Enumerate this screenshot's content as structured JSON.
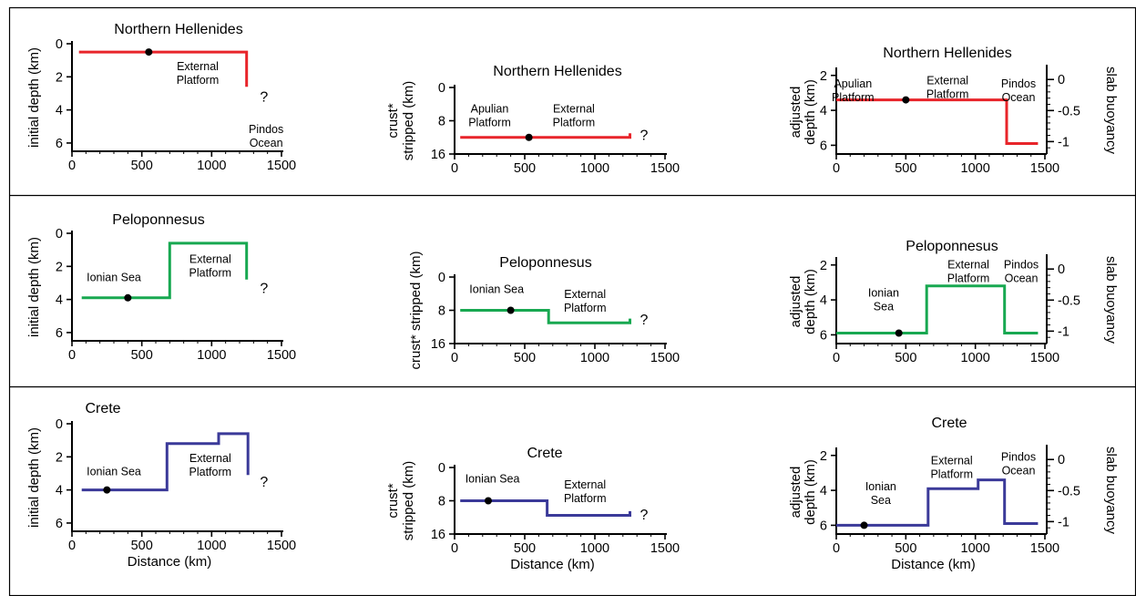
{
  "figure": {
    "colors": {
      "northern": "#e8242a",
      "peloponnesus": "#18a851",
      "crete": "#3b3a99",
      "axes": "#000000",
      "point": "#000000"
    },
    "question_mark": "?",
    "asterisk": "*"
  },
  "chart_data": [
    {
      "id": "nh-initial",
      "type": "line",
      "title": "Northern Hellenides",
      "xlabel": "",
      "ylabel": "initial depth (km)",
      "xlim": [
        0,
        1500
      ],
      "ylim": [
        0,
        6.5
      ],
      "y_inverted": true,
      "xticks": [
        "0",
        "500",
        "1000",
        "1500"
      ],
      "yticks": [
        "0",
        "2",
        "4",
        "6"
      ],
      "series": [
        {
          "values": [
            [
              50,
              0.5
            ],
            [
              1250,
              0.5
            ],
            [
              1250,
              2.6
            ]
          ]
        }
      ],
      "point": [
        550,
        0.5
      ],
      "annotations": [
        {
          "lines": [
            "External",
            "Platform"
          ],
          "x": 900,
          "y": 1.6
        },
        {
          "lines": [
            "Pindos",
            "Ocean"
          ],
          "x": 1390,
          "y": 5.4
        }
      ],
      "question_mark": {
        "x": 1375,
        "y": 3.5
      }
    },
    {
      "id": "nh-stripped",
      "type": "line",
      "title": "Northern Hellenides",
      "xlabel": "",
      "ylabel_lines": [
        "crust*",
        "stripped (km)"
      ],
      "xlim": [
        0,
        1500
      ],
      "ylim": [
        0,
        16
      ],
      "y_inverted": true,
      "xticks": [
        "0",
        "500",
        "1000",
        "1500"
      ],
      "yticks": [
        "0",
        "8",
        "16"
      ],
      "series": [
        {
          "values": [
            [
              40,
              12
            ],
            [
              1250,
              12
            ],
            [
              1250,
              11
            ]
          ]
        }
      ],
      "point": [
        530,
        12
      ],
      "annotations": [
        {
          "lines": [
            "Apulian",
            "Platform"
          ],
          "x": 250,
          "y": 6
        },
        {
          "lines": [
            "External",
            "Platform"
          ],
          "x": 850,
          "y": 6
        }
      ],
      "question_mark": {
        "x": 1350,
        "y": 12.6
      }
    },
    {
      "id": "nh-adjusted",
      "type": "line",
      "title": "Northern Hellenides",
      "xlabel": "",
      "ylabel_lines": [
        "adjusted",
        "depth (km)"
      ],
      "y2label": "slab buoyancy",
      "xlim": [
        0,
        1500
      ],
      "ylim": [
        1.7,
        6.5
      ],
      "y_inverted": true,
      "y2lim": [
        0.15,
        -1.2
      ],
      "xticks": [
        "0",
        "500",
        "1000",
        "1500"
      ],
      "yticks": [
        "2",
        "4",
        "6"
      ],
      "y2ticks": [
        "0",
        "-0.5",
        "-1"
      ],
      "series": [
        {
          "values": [
            [
              0,
              3.4
            ],
            [
              1225,
              3.4
            ],
            [
              1225,
              5.9
            ],
            [
              1450,
              5.9
            ]
          ]
        }
      ],
      "point": [
        500,
        3.4
      ],
      "annotations": [
        {
          "lines": [
            "Apulian",
            "Platform"
          ],
          "x": 120,
          "y": 2.7
        },
        {
          "lines": [
            "External",
            "Platform"
          ],
          "x": 800,
          "y": 2.5
        },
        {
          "lines": [
            "Pindos",
            "Ocean"
          ],
          "x": 1310,
          "y": 2.7
        }
      ]
    },
    {
      "id": "pe-initial",
      "type": "line",
      "title": "Peloponnesus",
      "xlabel": "",
      "ylabel": "initial depth (km)",
      "xlim": [
        0,
        1500
      ],
      "ylim": [
        0,
        6.5
      ],
      "y_inverted": true,
      "xticks": [
        "0",
        "500",
        "1000",
        "1500"
      ],
      "yticks": [
        "0",
        "2",
        "4",
        "6"
      ],
      "series": [
        {
          "values": [
            [
              70,
              3.9
            ],
            [
              700,
              3.9
            ],
            [
              700,
              0.6
            ],
            [
              1250,
              0.6
            ],
            [
              1250,
              2.8
            ]
          ]
        }
      ],
      "point": [
        400,
        3.9
      ],
      "annotations": [
        {
          "lines": [
            "Ionian Sea"
          ],
          "x": 300,
          "y": 2.9
        },
        {
          "lines": [
            "External",
            "Platform"
          ],
          "x": 990,
          "y": 1.8
        }
      ],
      "question_mark": {
        "x": 1375,
        "y": 3.6
      }
    },
    {
      "id": "pe-stripped",
      "type": "line",
      "title": "Peloponnesus",
      "xlabel": "",
      "ylabel": "crust* stripped (km)",
      "xlim": [
        0,
        1500
      ],
      "ylim": [
        0,
        16
      ],
      "y_inverted": true,
      "xticks": [
        "0",
        "500",
        "1000",
        "1500"
      ],
      "yticks": [
        "0",
        "8",
        "16"
      ],
      "series": [
        {
          "values": [
            [
              40,
              8
            ],
            [
              670,
              8
            ],
            [
              670,
              11
            ],
            [
              1250,
              11
            ],
            [
              1250,
              10
            ]
          ]
        }
      ],
      "point": [
        400,
        8
      ],
      "annotations": [
        {
          "lines": [
            "Ionian Sea"
          ],
          "x": 300,
          "y": 3.8
        },
        {
          "lines": [
            "External",
            "Platform"
          ],
          "x": 930,
          "y": 5
        }
      ],
      "question_mark": {
        "x": 1350,
        "y": 11.4
      }
    },
    {
      "id": "pe-adjusted",
      "type": "line",
      "title": "Peloponnesus",
      "xlabel": "",
      "ylabel_lines": [
        "adjusted",
        "depth (km)"
      ],
      "y2label": "slab buoyancy",
      "xlim": [
        0,
        1500
      ],
      "ylim": [
        1.7,
        6.5
      ],
      "y_inverted": true,
      "y2lim": [
        0.15,
        -1.2
      ],
      "xticks": [
        "0",
        "500",
        "1000",
        "1500"
      ],
      "yticks": [
        "2",
        "4",
        "6"
      ],
      "y2ticks": [
        "0",
        "-0.5",
        "-1"
      ],
      "series": [
        {
          "values": [
            [
              0,
              5.9
            ],
            [
              650,
              5.9
            ],
            [
              650,
              3.2
            ],
            [
              1210,
              3.2
            ],
            [
              1210,
              5.9
            ],
            [
              1450,
              5.9
            ]
          ]
        }
      ],
      "point": [
        450,
        5.9
      ],
      "annotations": [
        {
          "lines": [
            "Ionian",
            "Sea"
          ],
          "x": 340,
          "y": 3.8
        },
        {
          "lines": [
            "External",
            "Platform"
          ],
          "x": 950,
          "y": 2.2
        },
        {
          "lines": [
            "Pindos",
            "Ocean"
          ],
          "x": 1330,
          "y": 2.2
        }
      ]
    },
    {
      "id": "cr-initial",
      "type": "line",
      "title": "Crete",
      "xlabel": "Distance (km)",
      "ylabel": "initial depth (km)",
      "xlim": [
        0,
        1500
      ],
      "ylim": [
        0,
        6.5
      ],
      "y_inverted": true,
      "xticks": [
        "0",
        "500",
        "1000",
        "1500"
      ],
      "yticks": [
        "0",
        "2",
        "4",
        "6"
      ],
      "series": [
        {
          "values": [
            [
              70,
              4.0
            ],
            [
              680,
              4.0
            ],
            [
              680,
              1.2
            ],
            [
              1050,
              1.2
            ],
            [
              1050,
              0.6
            ],
            [
              1260,
              0.6
            ],
            [
              1260,
              3.1
            ]
          ]
        }
      ],
      "point": [
        250,
        4.0
      ],
      "annotations": [
        {
          "lines": [
            "Ionian Sea"
          ],
          "x": 300,
          "y": 3.1
        },
        {
          "lines": [
            "External",
            "Platform"
          ],
          "x": 990,
          "y": 2.3
        }
      ],
      "question_mark": {
        "x": 1375,
        "y": 3.8
      }
    },
    {
      "id": "cr-stripped",
      "type": "line",
      "title": "Crete",
      "xlabel": "Distance (km)",
      "ylabel_lines": [
        "crust*",
        "stripped (km)"
      ],
      "xlim": [
        0,
        1500
      ],
      "ylim": [
        0,
        16
      ],
      "y_inverted": true,
      "xticks": [
        "0",
        "500",
        "1000",
        "1500"
      ],
      "yticks": [
        "0",
        "8",
        "16"
      ],
      "series": [
        {
          "values": [
            [
              40,
              8
            ],
            [
              660,
              8
            ],
            [
              660,
              11.5
            ],
            [
              1250,
              11.5
            ],
            [
              1250,
              10.5
            ]
          ]
        }
      ],
      "point": [
        240,
        8
      ],
      "annotations": [
        {
          "lines": [
            "Ionian Sea"
          ],
          "x": 270,
          "y": 3.6
        },
        {
          "lines": [
            "External",
            "Platform"
          ],
          "x": 930,
          "y": 5
        }
      ],
      "question_mark": {
        "x": 1350,
        "y": 12.5
      }
    },
    {
      "id": "cr-adjusted",
      "type": "line",
      "title": "Crete",
      "xlabel": "Distance (km)",
      "ylabel_lines": [
        "adjusted",
        "depth (km)"
      ],
      "y2label": "slab buoyancy",
      "xlim": [
        0,
        1500
      ],
      "ylim": [
        1.7,
        6.5
      ],
      "y_inverted": true,
      "y2lim": [
        0.15,
        -1.2
      ],
      "xticks": [
        "0",
        "500",
        "1000",
        "1500"
      ],
      "yticks": [
        "2",
        "4",
        "6"
      ],
      "y2ticks": [
        "0",
        "-0.5",
        "-1"
      ],
      "series": [
        {
          "values": [
            [
              0,
              6.0
            ],
            [
              660,
              6.0
            ],
            [
              660,
              3.9
            ],
            [
              1020,
              3.9
            ],
            [
              1020,
              3.4
            ],
            [
              1210,
              3.4
            ],
            [
              1210,
              5.9
            ],
            [
              1450,
              5.9
            ]
          ]
        }
      ],
      "point": [
        200,
        6.0
      ],
      "annotations": [
        {
          "lines": [
            "Ionian",
            "Sea"
          ],
          "x": 320,
          "y": 4.0
        },
        {
          "lines": [
            "External",
            "Platform"
          ],
          "x": 830,
          "y": 2.5
        },
        {
          "lines": [
            "Pindos",
            "Ocean"
          ],
          "x": 1310,
          "y": 2.3
        }
      ]
    }
  ]
}
